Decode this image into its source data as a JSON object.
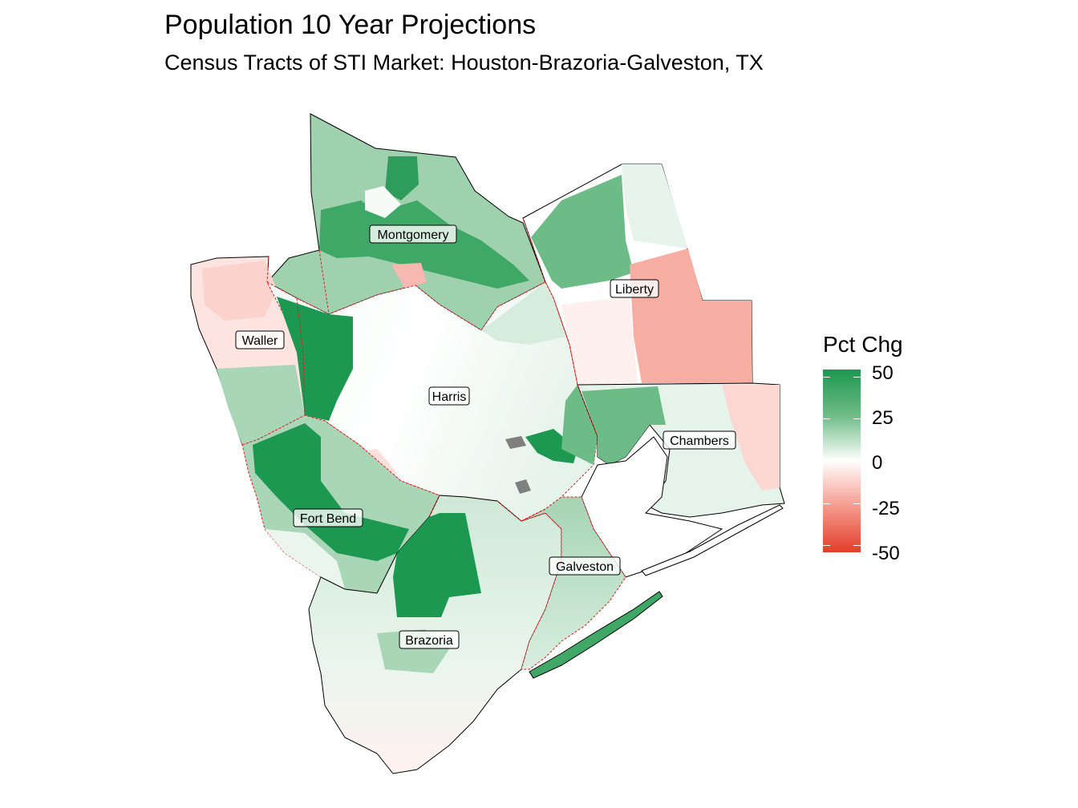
{
  "title": "Population 10 Year Projections",
  "subtitle": "Census Tracts of STI Market: Houston-Brazoria-Galveston, TX",
  "legend": {
    "title": "Pct Chg",
    "ticks": [
      {
        "label": "50",
        "value": 50
      },
      {
        "label": "25",
        "value": 25
      },
      {
        "label": "0",
        "value": 0
      },
      {
        "label": "-25",
        "value": -25
      },
      {
        "label": "-50",
        "value": -50
      }
    ],
    "range": [
      -50,
      50
    ],
    "colors": {
      "high": "#1c9850",
      "mid": "#ffffff",
      "low": "#e33e29"
    }
  },
  "colors": {
    "market_boundary": "#000000",
    "county_boundary": "#e41a1c",
    "missing": "#7f7f7f"
  },
  "counties": [
    {
      "name": "Montgomery",
      "label": "Montgomery",
      "pct_chg": 30
    },
    {
      "name": "Liberty",
      "label": "Liberty",
      "pct_chg": 5
    },
    {
      "name": "Waller",
      "label": "Waller",
      "pct_chg": 5
    },
    {
      "name": "Harris",
      "label": "Harris",
      "pct_chg": 8
    },
    {
      "name": "Chambers",
      "label": "Chambers",
      "pct_chg": 8
    },
    {
      "name": "Fort Bend",
      "label": "Fort Bend",
      "pct_chg": 30
    },
    {
      "name": "Galveston",
      "label": "Galveston",
      "pct_chg": 18
    },
    {
      "name": "Brazoria",
      "label": "Brazoria",
      "pct_chg": 15
    }
  ]
}
